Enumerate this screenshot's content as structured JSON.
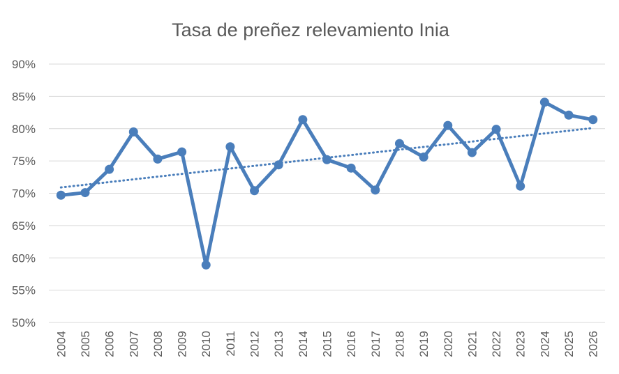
{
  "colors": {
    "series": "#4a7ebb",
    "grid": "#d9d9d9",
    "text": "#595959",
    "background": "#ffffff"
  },
  "chart_data": {
    "type": "line",
    "title": "Tasa de preñez relevamiento Inia",
    "xlabel": "",
    "ylabel": "",
    "ylim": [
      0.5,
      0.9
    ],
    "y_ticks": [
      0.5,
      0.55,
      0.6,
      0.65,
      0.7,
      0.75,
      0.8,
      0.85,
      0.9
    ],
    "y_tick_labels": [
      "50%",
      "55%",
      "60%",
      "65%",
      "70%",
      "75%",
      "80%",
      "85%",
      "90%"
    ],
    "categories": [
      "2004",
      "2005",
      "2006",
      "2007",
      "2008",
      "2009",
      "2010",
      "2011",
      "2012",
      "2013",
      "2014",
      "2015",
      "2016",
      "2017",
      "2018",
      "2019",
      "2020",
      "2021",
      "2022",
      "2023",
      "2024",
      "2025",
      "2026"
    ],
    "series": [
      {
        "values": [
          0.697,
          0.701,
          0.737,
          0.795,
          0.753,
          0.764,
          0.589,
          0.772,
          0.704,
          0.744,
          0.814,
          0.752,
          0.739,
          0.705,
          0.777,
          0.756,
          0.805,
          0.763,
          0.799,
          0.711,
          0.841,
          0.821,
          0.814
        ],
        "marker": "circle"
      }
    ],
    "trendline": {
      "type": "linear",
      "style": "dotted",
      "start": 0.709,
      "end": 0.801
    },
    "grid": true,
    "legend": "none"
  }
}
